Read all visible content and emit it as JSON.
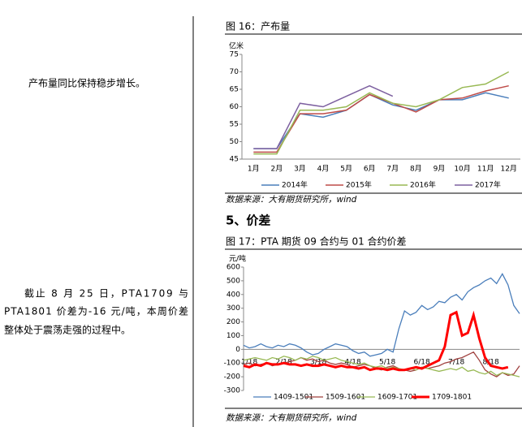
{
  "left_text": {
    "summary": "产布量同比保持稳步增长。",
    "paragraph": [
      "截止 8 月 25 日，PTA1709 与",
      "PTA1801 价差为-16 元/吨，本周价差",
      "整体处于震荡走强的过程中。"
    ]
  },
  "section_heading": "5、价差",
  "chart_data": [
    {
      "type": "line",
      "title": "图 16：产布量",
      "y_label": "亿米",
      "categories": [
        "1月",
        "2月",
        "3月",
        "4月",
        "5月",
        "6月",
        "7月",
        "8月",
        "9月",
        "10月",
        "11月",
        "12月"
      ],
      "ylim": [
        45,
        75
      ],
      "yticks": [
        45,
        50,
        55,
        60,
        65,
        70,
        75
      ],
      "legend": "bottom",
      "series": [
        {
          "name": "2014年",
          "color": "#4a7ebb",
          "values": [
            48,
            48,
            58,
            57,
            59,
            63.5,
            60.5,
            59,
            62,
            62,
            64,
            62.5
          ]
        },
        {
          "name": "2015年",
          "color": "#be4b48",
          "values": [
            47,
            47,
            58,
            58,
            59,
            63.5,
            61,
            58.5,
            62,
            62.5,
            64.5,
            66
          ]
        },
        {
          "name": "2016年",
          "color": "#98b954",
          "values": [
            46.5,
            46.5,
            59,
            59,
            60,
            64,
            61,
            60,
            62,
            65.5,
            66.5,
            70
          ]
        },
        {
          "name": "2017年",
          "color": "#7d60a0",
          "values": [
            48,
            48,
            61,
            60,
            63,
            66,
            63,
            null,
            null,
            null,
            null,
            null
          ]
        }
      ],
      "source": "数据来源：大有期货研究所，wind"
    },
    {
      "type": "line",
      "title": "图 17：PTA 期货 09 合约与 01 合约价差",
      "y_label": "元/吨",
      "categories": [
        null,
        "1/18",
        null,
        null,
        null,
        null,
        null,
        "2/18",
        null,
        null,
        null,
        null,
        null,
        "3/18",
        null,
        null,
        null,
        null,
        null,
        "4/18",
        null,
        null,
        null,
        null,
        null,
        "5/18",
        null,
        null,
        null,
        null,
        null,
        "6/18",
        null,
        null,
        null,
        null,
        null,
        "7/18",
        null,
        null,
        null,
        null,
        null,
        "8/18",
        null,
        null,
        null,
        null,
        null
      ],
      "ylim": [
        -300,
        600
      ],
      "yticks": [
        -300,
        -200,
        -100,
        0,
        100,
        200,
        300,
        400,
        500,
        600
      ],
      "legend": "bottom",
      "series": [
        {
          "name": "1409-1501",
          "color": "#4a7ebb",
          "width": 1.3,
          "values": [
            30,
            10,
            20,
            40,
            20,
            10,
            30,
            20,
            40,
            30,
            10,
            -20,
            -40,
            -30,
            0,
            20,
            40,
            30,
            20,
            -10,
            -30,
            -20,
            -50,
            -40,
            -30,
            0,
            -20,
            150,
            280,
            250,
            270,
            320,
            290,
            310,
            350,
            340,
            380,
            400,
            360,
            420,
            450,
            470,
            500,
            520,
            480,
            550,
            470,
            320,
            260
          ]
        },
        {
          "name": "1509-1601",
          "color": "#a0413f",
          "width": 1.3,
          "values": [
            -110,
            -100,
            -120,
            -110,
            -100,
            -120,
            -110,
            -100,
            -90,
            -80,
            -60,
            -80,
            -70,
            -90,
            -80,
            -100,
            -110,
            -100,
            -110,
            -130,
            -120,
            -110,
            -120,
            -140,
            -150,
            -130,
            -120,
            -140,
            -150,
            -160,
            -150,
            -130,
            -140,
            -130,
            -120,
            -100,
            -90,
            -70,
            -60,
            -40,
            -20,
            -80,
            -150,
            -180,
            -200,
            -170,
            -190,
            -180,
            -120
          ]
        },
        {
          "name": "1609-1701",
          "color": "#98b954",
          "width": 1.3,
          "values": [
            -80,
            -70,
            -60,
            -70,
            -80,
            -60,
            -70,
            -50,
            -60,
            -80,
            -60,
            -70,
            -50,
            -60,
            -80,
            -70,
            -60,
            -80,
            -90,
            -100,
            -110,
            -100,
            -120,
            -130,
            -120,
            -140,
            -130,
            -140,
            -150,
            -140,
            -150,
            -130,
            -140,
            -150,
            -160,
            -150,
            -140,
            -150,
            -130,
            -160,
            -150,
            -170,
            -180,
            -160,
            -190,
            -170,
            -180,
            -190,
            -200
          ]
        },
        {
          "name": "1709-1801",
          "color": "#ff0000",
          "width": 3,
          "values": [
            -120,
            -130,
            -110,
            -120,
            -100,
            -110,
            -110,
            -100,
            -110,
            -110,
            -120,
            -110,
            -120,
            -120,
            -110,
            -120,
            -130,
            -120,
            -130,
            -130,
            -140,
            -130,
            -150,
            -140,
            -140,
            -150,
            -140,
            -150,
            -150,
            -140,
            -130,
            -140,
            -120,
            -100,
            -80,
            20,
            250,
            270,
            100,
            120,
            250,
            80,
            -60,
            -120,
            -130,
            -140,
            -130,
            null,
            null
          ]
        }
      ],
      "source": "数据来源：大有期货研究所，wind"
    }
  ]
}
